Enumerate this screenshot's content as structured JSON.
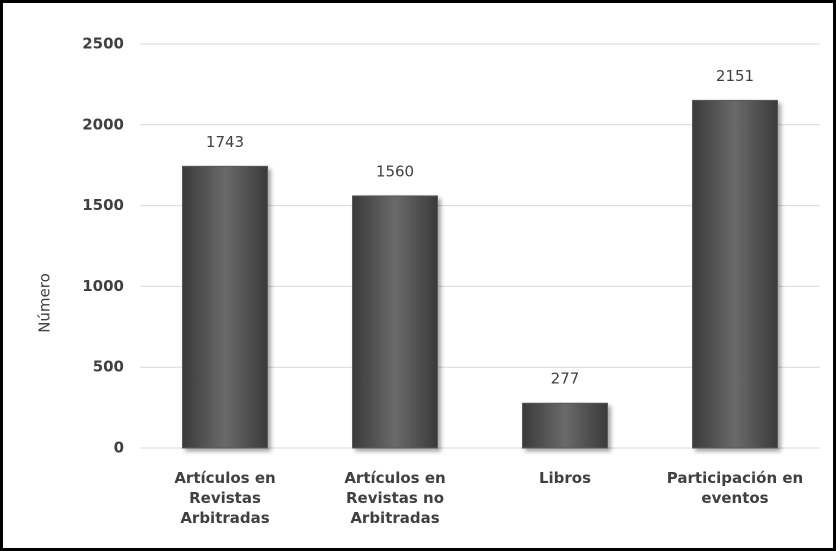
{
  "chart_data": {
    "type": "bar",
    "y_label": "Número",
    "categories": [
      "Artículos en Revistas Arbitradas",
      "Artículos en Revistas no Arbitradas",
      "Libros",
      "Participación en eventos"
    ],
    "values": [
      1743,
      1560,
      277,
      2151
    ],
    "color": "#5a5a5a",
    "ylim": [
      0,
      2500
    ],
    "yticks": [
      0,
      500,
      1000,
      1500,
      2000,
      2500
    ],
    "grid": true
  }
}
